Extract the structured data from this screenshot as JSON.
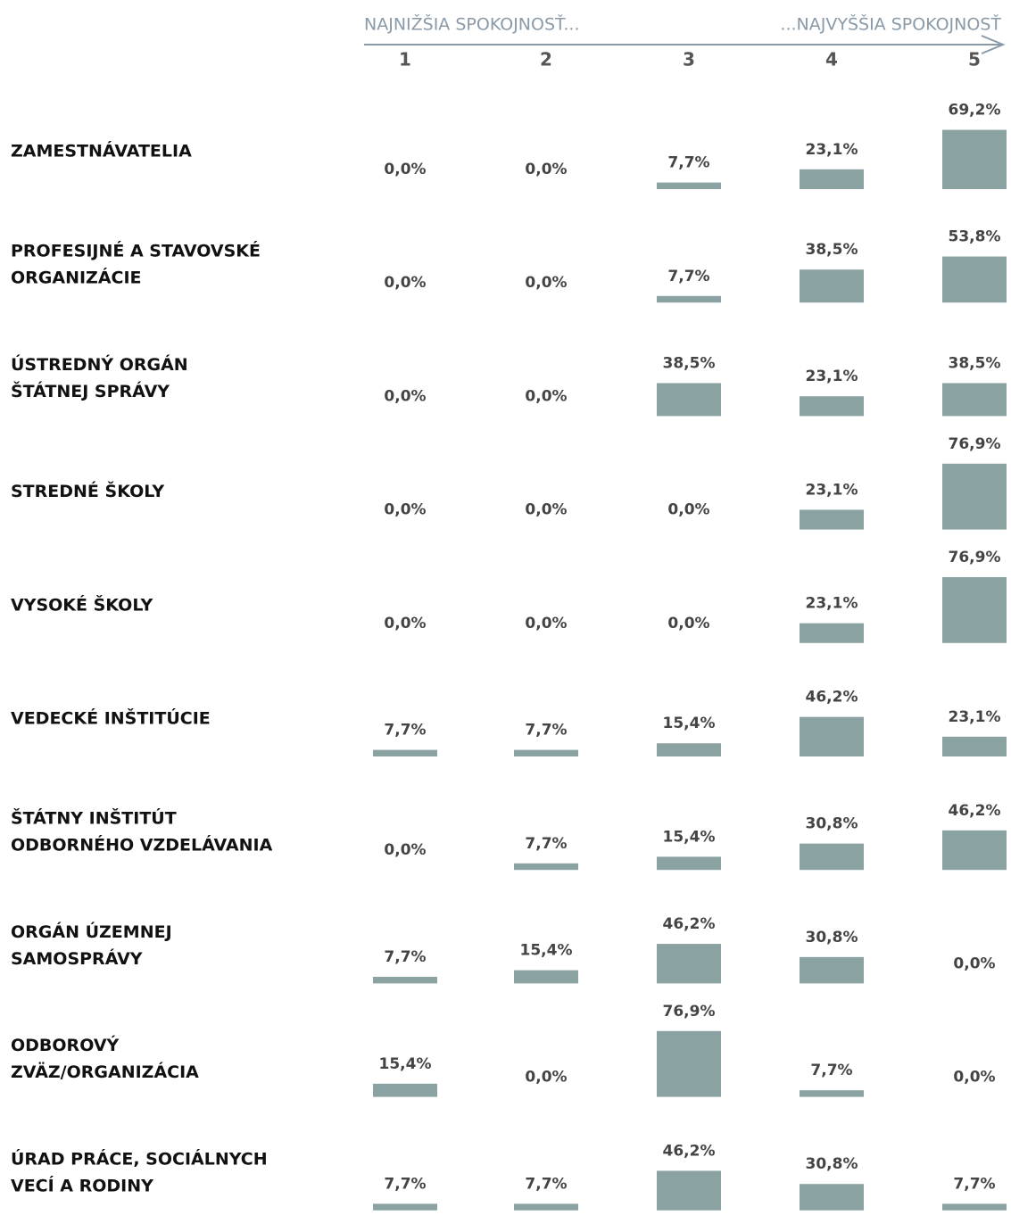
{
  "chart_data": {
    "type": "bar",
    "scale_left": "NAJNIŽŠIA SPOKOJNOSŤ...",
    "scale_right": "...NAJVYŠŠIA SPOKOJNOSŤ",
    "categories": [
      "1",
      "2",
      "3",
      "4",
      "5"
    ],
    "color": "#8aa3a2",
    "rows": [
      {
        "label": [
          "ZAMESTNÁVATELIA"
        ],
        "values": [
          0,
          0,
          7.7,
          23.1,
          69.2
        ],
        "value_labels": [
          "0,0%",
          "0,0%",
          "7,7%",
          "23,1%",
          "69,2%"
        ]
      },
      {
        "label": [
          "PROFESIJNÉ A STAVOVSKÉ",
          "ORGANIZÁCIE"
        ],
        "values": [
          0,
          0,
          7.7,
          38.5,
          53.8
        ],
        "value_labels": [
          "0,0%",
          "0,0%",
          "7,7%",
          "38,5%",
          "53,8%"
        ]
      },
      {
        "label": [
          "ÚSTREDNÝ ORGÁN",
          "ŠTÁTNEJ SPRÁVY"
        ],
        "values": [
          0,
          0,
          38.5,
          23.1,
          38.5
        ],
        "value_labels": [
          "0,0%",
          "0,0%",
          "38,5%",
          "23,1%",
          "38,5%"
        ]
      },
      {
        "label": [
          "STREDNÉ ŠKOLY"
        ],
        "values": [
          0,
          0,
          0,
          23.1,
          76.9
        ],
        "value_labels": [
          "0,0%",
          "0,0%",
          "0,0%",
          "23,1%",
          "76,9%"
        ]
      },
      {
        "label": [
          "VYSOKÉ ŠKOLY"
        ],
        "values": [
          0,
          0,
          0,
          23.1,
          76.9
        ],
        "value_labels": [
          "0,0%",
          "0,0%",
          "0,0%",
          "23,1%",
          "76,9%"
        ]
      },
      {
        "label": [
          "VEDECKÉ INŠTITÚCIE"
        ],
        "values": [
          7.7,
          7.7,
          15.4,
          46.2,
          23.1
        ],
        "value_labels": [
          "7,7%",
          "7,7%",
          "15,4%",
          "46,2%",
          "23,1%"
        ]
      },
      {
        "label": [
          "ŠTÁTNY INŠTITÚT",
          "ODBORNÉHO VZDELÁVANIA"
        ],
        "values": [
          0,
          7.7,
          15.4,
          30.8,
          46.2
        ],
        "value_labels": [
          "0,0%",
          "7,7%",
          "15,4%",
          "30,8%",
          "46,2%"
        ]
      },
      {
        "label": [
          "ORGÁN ÚZEMNEJ",
          "SAMOSPRÁVY"
        ],
        "values": [
          7.7,
          15.4,
          46.2,
          30.8,
          0
        ],
        "value_labels": [
          "7,7%",
          "15,4%",
          "46,2%",
          "30,8%",
          "0,0%"
        ]
      },
      {
        "label": [
          "ODBOROVÝ",
          "ZVÄZ/ORGANIZÁCIA"
        ],
        "values": [
          15.4,
          0,
          76.9,
          7.7,
          0
        ],
        "value_labels": [
          "15,4%",
          "0,0%",
          "76,9%",
          "7,7%",
          "0,0%"
        ]
      },
      {
        "label": [
          "ÚRAD PRÁCE, SOCIÁLNYCH",
          "VECÍ A RODINY"
        ],
        "values": [
          7.7,
          7.7,
          46.2,
          30.8,
          7.7
        ],
        "value_labels": [
          "7,7%",
          "7,7%",
          "46,2%",
          "30,8%",
          "7,7%"
        ]
      }
    ]
  }
}
